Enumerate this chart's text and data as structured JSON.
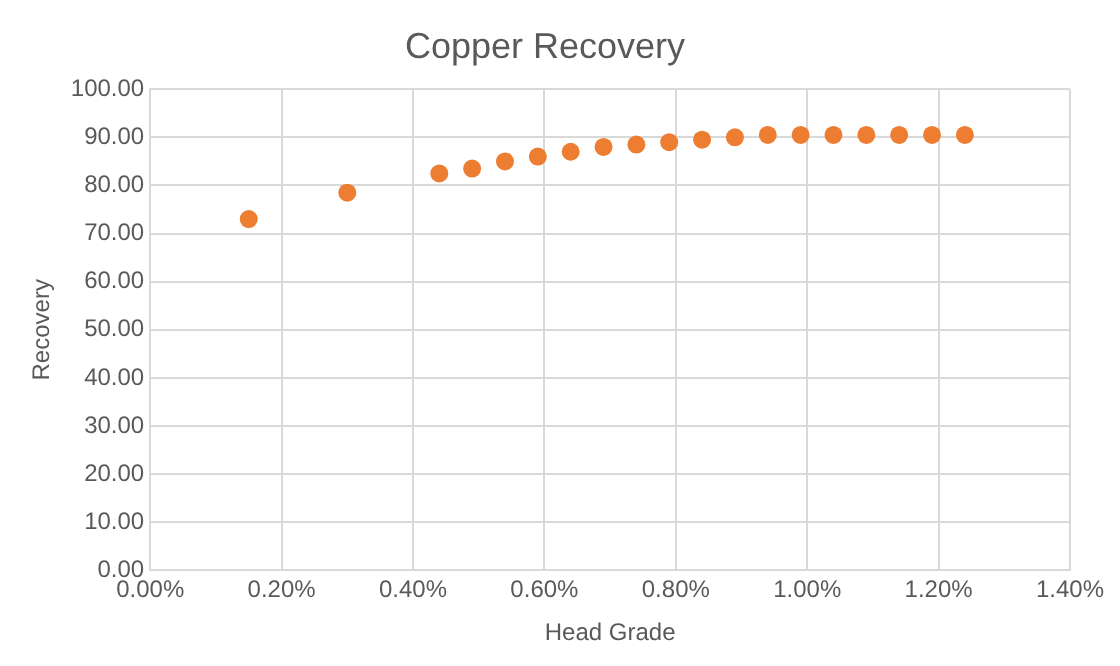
{
  "chart_data": {
    "type": "scatter",
    "title": "Copper Recovery",
    "xlabel": "Head Grade",
    "ylabel": "Recovery",
    "x": [
      0.15,
      0.3,
      0.44,
      0.49,
      0.54,
      0.59,
      0.64,
      0.69,
      0.74,
      0.79,
      0.84,
      0.89,
      0.94,
      0.99,
      1.04,
      1.09,
      1.14,
      1.19,
      1.24
    ],
    "series": [
      {
        "color": "#ed7d31",
        "values": [
          73,
          78.5,
          82.5,
          83.5,
          85,
          86,
          87,
          88,
          88.5,
          89,
          89.5,
          90,
          90.5,
          90.5,
          90.5,
          90.5,
          90.5,
          90.5,
          90.5
        ]
      }
    ],
    "xlim": [
      0,
      1.4
    ],
    "xticks": [
      {
        "value": 0,
        "label": "0.00%"
      },
      {
        "value": 0.2,
        "label": "0.20%"
      },
      {
        "value": 0.4,
        "label": "0.40%"
      },
      {
        "value": 0.6,
        "label": "0.60%"
      },
      {
        "value": 0.8,
        "label": "0.80%"
      },
      {
        "value": 1.0,
        "label": "1.00%"
      },
      {
        "value": 1.2,
        "label": "1.20%"
      },
      {
        "value": 1.4,
        "label": "1.40%"
      }
    ],
    "ylim": [
      0,
      100
    ],
    "yticks": [
      {
        "value": 0,
        "label": "0.00"
      },
      {
        "value": 10,
        "label": "10.00"
      },
      {
        "value": 20,
        "label": "20.00"
      },
      {
        "value": 30,
        "label": "30.00"
      },
      {
        "value": 40,
        "label": "40.00"
      },
      {
        "value": 50,
        "label": "50.00"
      },
      {
        "value": 60,
        "label": "60.00"
      },
      {
        "value": 70,
        "label": "70.00"
      },
      {
        "value": 80,
        "label": "80.00"
      },
      {
        "value": 90,
        "label": "90.00"
      },
      {
        "value": 100,
        "label": "100.00"
      }
    ],
    "grid": true,
    "marker": "circle",
    "legend": false
  }
}
